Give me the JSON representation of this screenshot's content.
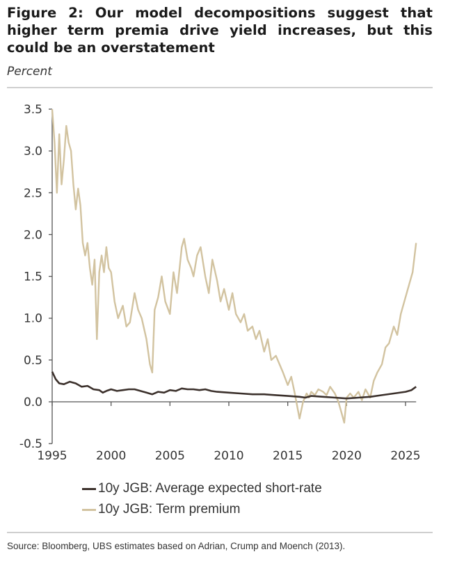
{
  "title": "Figure 2: Our model decompositions suggest that higher term premia drive yield increases, but this could be an overstatement",
  "unit_label": "Percent",
  "source": "Source: Bloomberg, UBS estimates based on Adrian, Crump and Moench (2013).",
  "colors": {
    "short_rate": "#3b302b",
    "term_premium": "#d2c3a0",
    "axis": "#555555"
  },
  "chart_data": {
    "type": "line",
    "title": "Figure 2: Our model decompositions suggest that higher term premia drive yield increases, but this could be an overstatement",
    "xlabel": "",
    "ylabel": "Percent",
    "xlim": [
      1995,
      2025.9
    ],
    "ylim": [
      -0.5,
      3.5
    ],
    "x_ticks": [
      "1995",
      "2000",
      "2005",
      "2010",
      "2015",
      "2020",
      "2025"
    ],
    "y_ticks": [
      "3.5",
      "3.0",
      "2.5",
      "2.0",
      "1.5",
      "1.0",
      "0.5",
      "0.0",
      "-0.5"
    ],
    "grid": false,
    "legend_position": "bottom",
    "series": [
      {
        "name": "10y JGB: Average expected short-rate",
        "color": "#3b302b",
        "x": [
          1995.0,
          1995.3,
          1995.6,
          1996.0,
          1996.5,
          1997.0,
          1997.5,
          1998.0,
          1998.5,
          1999.0,
          1999.3,
          1999.6,
          2000.0,
          2000.5,
          2001.0,
          2001.5,
          2002.0,
          2002.5,
          2003.0,
          2003.5,
          2004.0,
          2004.5,
          2005.0,
          2005.5,
          2006.0,
          2006.5,
          2007.0,
          2007.5,
          2008.0,
          2008.5,
          2009.0,
          2010.0,
          2011.0,
          2012.0,
          2013.0,
          2014.0,
          2015.0,
          2016.0,
          2016.5,
          2017.0,
          2018.0,
          2019.0,
          2020.0,
          2021.0,
          2022.0,
          2023.0,
          2024.0,
          2025.0,
          2025.5,
          2025.9
        ],
        "values": [
          0.36,
          0.27,
          0.22,
          0.21,
          0.24,
          0.22,
          0.18,
          0.19,
          0.15,
          0.14,
          0.11,
          0.13,
          0.15,
          0.13,
          0.14,
          0.15,
          0.15,
          0.13,
          0.11,
          0.09,
          0.12,
          0.11,
          0.14,
          0.13,
          0.16,
          0.15,
          0.15,
          0.14,
          0.15,
          0.13,
          0.12,
          0.11,
          0.1,
          0.09,
          0.09,
          0.08,
          0.07,
          0.06,
          0.05,
          0.07,
          0.06,
          0.05,
          0.04,
          0.05,
          0.06,
          0.08,
          0.1,
          0.12,
          0.14,
          0.18
        ]
      },
      {
        "name": "10y JGB: Term premium",
        "color": "#d2c3a0",
        "x": [
          1995.0,
          1995.2,
          1995.4,
          1995.6,
          1995.8,
          1996.0,
          1996.2,
          1996.4,
          1996.6,
          1996.8,
          1997.0,
          1997.2,
          1997.4,
          1997.6,
          1997.8,
          1998.0,
          1998.2,
          1998.4,
          1998.6,
          1998.8,
          1999.0,
          1999.2,
          1999.4,
          1999.6,
          1999.8,
          2000.0,
          2000.3,
          2000.6,
          2001.0,
          2001.3,
          2001.6,
          2002.0,
          2002.3,
          2002.6,
          2003.0,
          2003.3,
          2003.5,
          2003.7,
          2004.0,
          2004.3,
          2004.6,
          2005.0,
          2005.3,
          2005.6,
          2006.0,
          2006.2,
          2006.5,
          2006.8,
          2007.0,
          2007.3,
          2007.6,
          2008.0,
          2008.3,
          2008.6,
          2009.0,
          2009.3,
          2009.6,
          2010.0,
          2010.3,
          2010.6,
          2011.0,
          2011.3,
          2011.6,
          2012.0,
          2012.3,
          2012.6,
          2013.0,
          2013.3,
          2013.6,
          2014.0,
          2014.3,
          2014.6,
          2015.0,
          2015.3,
          2015.6,
          2016.0,
          2016.3,
          2016.6,
          2016.8,
          2017.0,
          2017.3,
          2017.6,
          2018.0,
          2018.3,
          2018.6,
          2019.0,
          2019.3,
          2019.6,
          2019.8,
          2020.0,
          2020.3,
          2020.6,
          2021.0,
          2021.3,
          2021.6,
          2022.0,
          2022.3,
          2022.6,
          2023.0,
          2023.3,
          2023.6,
          2024.0,
          2024.3,
          2024.6,
          2025.0,
          2025.3,
          2025.6,
          2025.9
        ],
        "values": [
          3.5,
          3.1,
          2.5,
          3.2,
          2.6,
          2.9,
          3.3,
          3.1,
          3.0,
          2.6,
          2.3,
          2.55,
          2.35,
          1.9,
          1.75,
          1.9,
          1.6,
          1.4,
          1.7,
          0.75,
          1.55,
          1.75,
          1.55,
          1.85,
          1.6,
          1.55,
          1.2,
          1.0,
          1.15,
          0.9,
          0.95,
          1.3,
          1.1,
          1.0,
          0.75,
          0.45,
          0.35,
          1.1,
          1.25,
          1.5,
          1.2,
          1.05,
          1.55,
          1.3,
          1.85,
          1.95,
          1.7,
          1.6,
          1.5,
          1.75,
          1.85,
          1.5,
          1.3,
          1.7,
          1.45,
          1.2,
          1.35,
          1.1,
          1.3,
          1.05,
          0.95,
          1.05,
          0.85,
          0.9,
          0.75,
          0.85,
          0.6,
          0.75,
          0.5,
          0.55,
          0.45,
          0.35,
          0.2,
          0.3,
          0.1,
          -0.2,
          0.0,
          0.1,
          0.05,
          0.12,
          0.08,
          0.15,
          0.12,
          0.08,
          0.18,
          0.1,
          0.0,
          -0.15,
          -0.25,
          0.05,
          0.1,
          0.05,
          0.12,
          0.02,
          0.15,
          0.05,
          0.25,
          0.35,
          0.45,
          0.65,
          0.7,
          0.9,
          0.8,
          1.05,
          1.25,
          1.4,
          1.55,
          1.9
        ]
      }
    ]
  }
}
